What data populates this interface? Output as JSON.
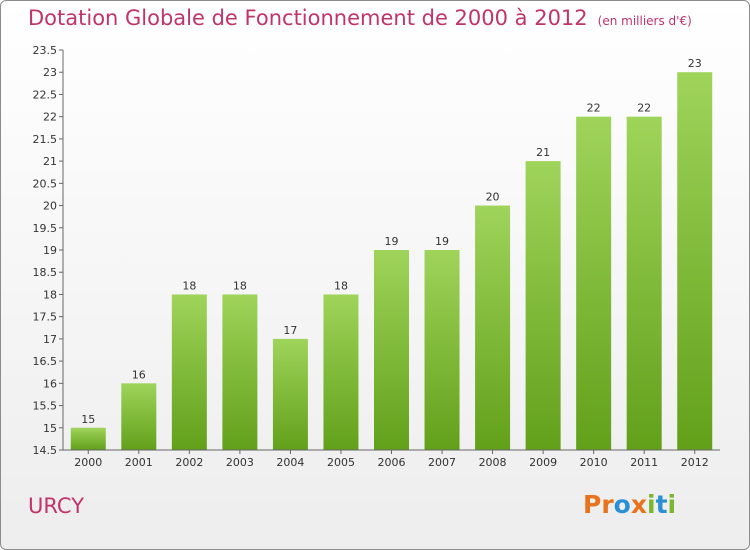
{
  "header": {
    "title": "Dotation Globale de Fonctionnement de 2000 à 2012",
    "subtitle": "(en milliers d'€)"
  },
  "footer": {
    "town": "URCY",
    "logo_letters": [
      "P",
      "r",
      "o",
      "x",
      "i",
      "t",
      "i"
    ],
    "logo_colors": [
      "#e8731c",
      "#e8731c",
      "#2b8fd6",
      "#e8731c",
      "#7ab72e",
      "#2b8fd6",
      "#7ab72e"
    ]
  },
  "chart_data": {
    "type": "bar",
    "categories": [
      "2000",
      "2001",
      "2002",
      "2003",
      "2004",
      "2005",
      "2006",
      "2007",
      "2008",
      "2009",
      "2010",
      "2011",
      "2012"
    ],
    "values": [
      15,
      16,
      18,
      18,
      17,
      18,
      19,
      19,
      20,
      21,
      22,
      22,
      23
    ],
    "ylim": [
      14.5,
      23.5
    ],
    "yticks": [
      "14.5",
      "15",
      "15.5",
      "16",
      "16.5",
      "17",
      "17.5",
      "18",
      "18.5",
      "19",
      "19.5",
      "20",
      "20.5",
      "21",
      "21.5",
      "22",
      "22.5",
      "23",
      "23.5"
    ],
    "grid": false,
    "bar_color": "#7ab72e"
  }
}
